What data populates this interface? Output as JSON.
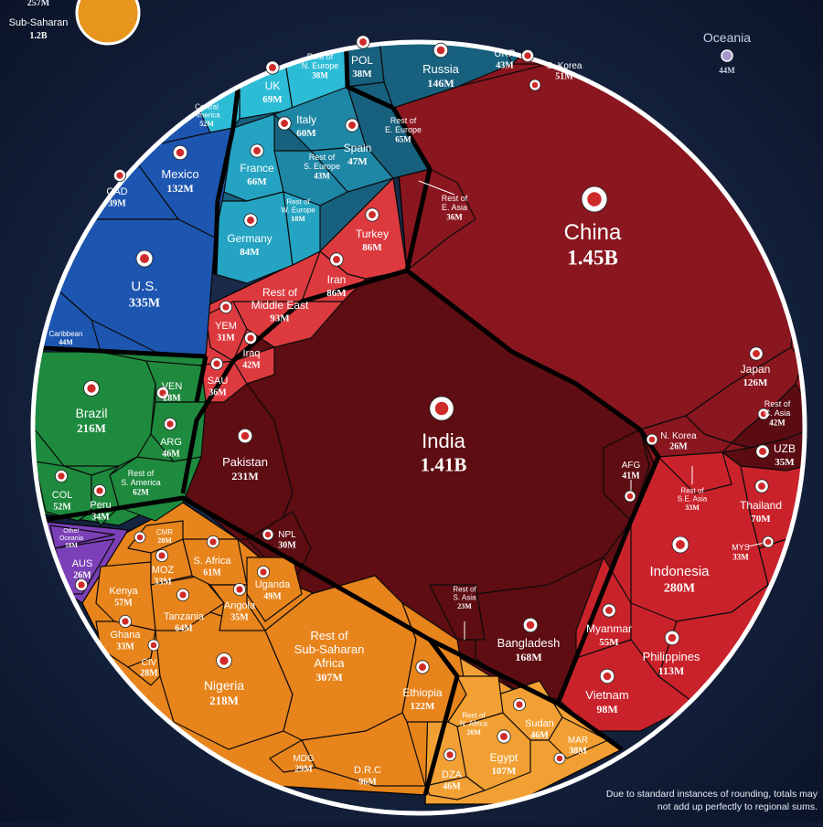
{
  "chart_data": {
    "type": "voronoi treemap",
    "units": "population",
    "cells": [
      {
        "id": "china",
        "label": "China",
        "value": "1.45B",
        "region": "Asia"
      },
      {
        "id": "india",
        "label": "India",
        "value": "1.41B",
        "region": "Asia"
      },
      {
        "id": "japan",
        "label": "Japan",
        "value": "126M",
        "region": "Asia"
      },
      {
        "id": "skorea",
        "label": "S. Korea",
        "value": "51M",
        "region": "Asia"
      },
      {
        "id": "nkorea",
        "label": "N. Korea",
        "value": "26M",
        "region": "Asia"
      },
      {
        "id": "resteasia",
        "label": "Rest of E. Asia",
        "value": "36M",
        "region": "Asia"
      },
      {
        "id": "restcasia",
        "label": "Rest of C. Asia",
        "value": "42M",
        "region": "Asia"
      },
      {
        "id": "uzb",
        "label": "UZB",
        "value": "35M",
        "region": "Asia"
      },
      {
        "id": "pakistan",
        "label": "Pakistan",
        "value": "231M",
        "region": "Asia"
      },
      {
        "id": "bangladesh",
        "label": "Bangladesh",
        "value": "168M",
        "region": "Asia"
      },
      {
        "id": "npl",
        "label": "NPL",
        "value": "30M",
        "region": "Asia"
      },
      {
        "id": "afg",
        "label": "AFG",
        "value": "41M",
        "region": "Asia"
      },
      {
        "id": "restsasia",
        "label": "Rest of S. Asia",
        "value": "23M",
        "region": "Asia"
      },
      {
        "id": "indonesia",
        "label": "Indonesia",
        "value": "280M",
        "region": "Asia"
      },
      {
        "id": "philippines",
        "label": "Philippines",
        "value": "113M",
        "region": "Asia"
      },
      {
        "id": "vietnam",
        "label": "Vietnam",
        "value": "98M",
        "region": "Asia"
      },
      {
        "id": "thailand",
        "label": "Thailand",
        "value": "70M",
        "region": "Asia"
      },
      {
        "id": "myanmar",
        "label": "Myanmar",
        "value": "55M",
        "region": "Asia"
      },
      {
        "id": "mys",
        "label": "MYS",
        "value": "33M",
        "region": "Asia"
      },
      {
        "id": "restseasia",
        "label": "Rest of S.E. Asia",
        "value": "33M",
        "region": "Asia"
      },
      {
        "id": "turkey",
        "label": "Turkey",
        "value": "86M",
        "region": "Middle East"
      },
      {
        "id": "iran",
        "label": "Iran",
        "value": "86M",
        "region": "Middle East"
      },
      {
        "id": "restme",
        "label": "Rest of Middle East",
        "value": "93M",
        "region": "Middle East"
      },
      {
        "id": "iraq",
        "label": "Iraq",
        "value": "42M",
        "region": "Middle East"
      },
      {
        "id": "yem",
        "label": "YEM",
        "value": "31M",
        "region": "Middle East"
      },
      {
        "id": "sau",
        "label": "SAU",
        "value": "36M",
        "region": "Middle East"
      },
      {
        "id": "russia",
        "label": "Russia",
        "value": "146M",
        "region": "Europe"
      },
      {
        "id": "pol",
        "label": "POL",
        "value": "38M",
        "region": "Europe"
      },
      {
        "id": "ukr",
        "label": "UKR",
        "value": "43M",
        "region": "Europe"
      },
      {
        "id": "resteeurope",
        "label": "Rest of E. Europe",
        "value": "65M",
        "region": "Europe"
      },
      {
        "id": "uk",
        "label": "UK",
        "value": "69M",
        "region": "Europe"
      },
      {
        "id": "restneurope",
        "label": "Rest of N. Europe",
        "value": "38M",
        "region": "Europe"
      },
      {
        "id": "italy",
        "label": "Italy",
        "value": "60M",
        "region": "Europe"
      },
      {
        "id": "spain",
        "label": "Spain",
        "value": "47M",
        "region": "Europe"
      },
      {
        "id": "restseurope",
        "label": "Rest of S. Europe",
        "value": "43M",
        "region": "Europe"
      },
      {
        "id": "france",
        "label": "France",
        "value": "66M",
        "region": "Europe"
      },
      {
        "id": "germany",
        "label": "Germany",
        "value": "84M",
        "region": "Europe"
      },
      {
        "id": "restweurope",
        "label": "Rest of W. Europe",
        "value": "18M",
        "region": "Europe"
      },
      {
        "id": "centralam",
        "label": "Central America",
        "value": "52M",
        "region": "North America"
      },
      {
        "id": "mexico",
        "label": "Mexico",
        "value": "132M",
        "region": "North America"
      },
      {
        "id": "cad",
        "label": "CAD",
        "value": "39M",
        "region": "North America"
      },
      {
        "id": "us",
        "label": "U.S.",
        "value": "335M",
        "region": "North America"
      },
      {
        "id": "caribbean",
        "label": "Caribbean",
        "value": "44M",
        "region": "North America"
      },
      {
        "id": "brazil",
        "label": "Brazil",
        "value": "216M",
        "region": "South America"
      },
      {
        "id": "ven",
        "label": "VEN",
        "value": "28M",
        "region": "South America"
      },
      {
        "id": "arg",
        "label": "ARG",
        "value": "46M",
        "region": "South America"
      },
      {
        "id": "restsam",
        "label": "Rest of S. America",
        "value": "62M",
        "region": "South America"
      },
      {
        "id": "col",
        "label": "COL",
        "value": "52M",
        "region": "South America"
      },
      {
        "id": "peru",
        "label": "Peru",
        "value": "34M",
        "region": "South America"
      },
      {
        "id": "aus",
        "label": "AUS",
        "value": "26M",
        "region": "Oceania"
      },
      {
        "id": "otheroceania",
        "label": "Other Oceania",
        "value": "18M",
        "region": "Oceania"
      },
      {
        "id": "nigeria",
        "label": "Nigeria",
        "value": "218M",
        "region": "Africa"
      },
      {
        "id": "restssa",
        "label": "Rest of Sub-Saharan Africa",
        "value": "307M",
        "region": "Africa"
      },
      {
        "id": "ethiopia",
        "label": "Ethiopia",
        "value": "122M",
        "region": "Africa"
      },
      {
        "id": "drc",
        "label": "D.R.C",
        "value": "96M",
        "region": "Africa"
      },
      {
        "id": "mdg",
        "label": "MDG",
        "value": "29M",
        "region": "Africa"
      },
      {
        "id": "tanzania",
        "label": "Tanzania",
        "value": "64M",
        "region": "Africa"
      },
      {
        "id": "kenya",
        "label": "Kenya",
        "value": "57M",
        "region": "Africa"
      },
      {
        "id": "safrica",
        "label": "S. Africa",
        "value": "61M",
        "region": "Africa"
      },
      {
        "id": "uganda",
        "label": "Uganda",
        "value": "49M",
        "region": "Africa"
      },
      {
        "id": "angola",
        "label": "Angola",
        "value": "35M",
        "region": "Africa"
      },
      {
        "id": "moz",
        "label": "MOZ",
        "value": "33M",
        "region": "Africa"
      },
      {
        "id": "cmr",
        "label": "CMR",
        "value": "28M",
        "region": "Africa"
      },
      {
        "id": "ghana",
        "label": "Ghana",
        "value": "33M",
        "region": "Africa"
      },
      {
        "id": "civ",
        "label": "CIV",
        "value": "28M",
        "region": "Africa"
      },
      {
        "id": "egypt",
        "label": "Egypt",
        "value": "107M",
        "region": "Africa"
      },
      {
        "id": "sudan",
        "label": "Sudan",
        "value": "46M",
        "region": "Africa"
      },
      {
        "id": "mar",
        "label": "MAR",
        "value": "38M",
        "region": "Africa"
      },
      {
        "id": "dza",
        "label": "DZA",
        "value": "46M",
        "region": "Africa"
      },
      {
        "id": "restnafrica",
        "label": "Rest of N. Africa",
        "value": "20M",
        "region": "Africa"
      }
    ],
    "legend_markers": [
      {
        "label": "Sub-Saharan",
        "value": "1.2B",
        "top_value": "257M",
        "color": "#e8951e"
      },
      {
        "label": "Oceania",
        "value": "44M",
        "color": "#a796c9"
      }
    ],
    "footnote": "Due to standard instances of rounding, totals may not add up perfectly to regional sums."
  },
  "colors": {
    "background": "#0e1a33",
    "asia": "#8a161f",
    "india": "#5e0d12",
    "southeast_asia": "#c9222b",
    "middle_east": "#dc3a3f",
    "europe_east": "#17607e",
    "europe_south": "#1f87a6",
    "europe_north": "#2dbcd6",
    "north_america": "#1d56b0",
    "south_america": "#1e8a3e",
    "oceania": "#7b3fb7",
    "africa": "#e8841c",
    "north_africa": "#f2a033",
    "border": "#000000",
    "outer_ring": "#ffffff"
  }
}
